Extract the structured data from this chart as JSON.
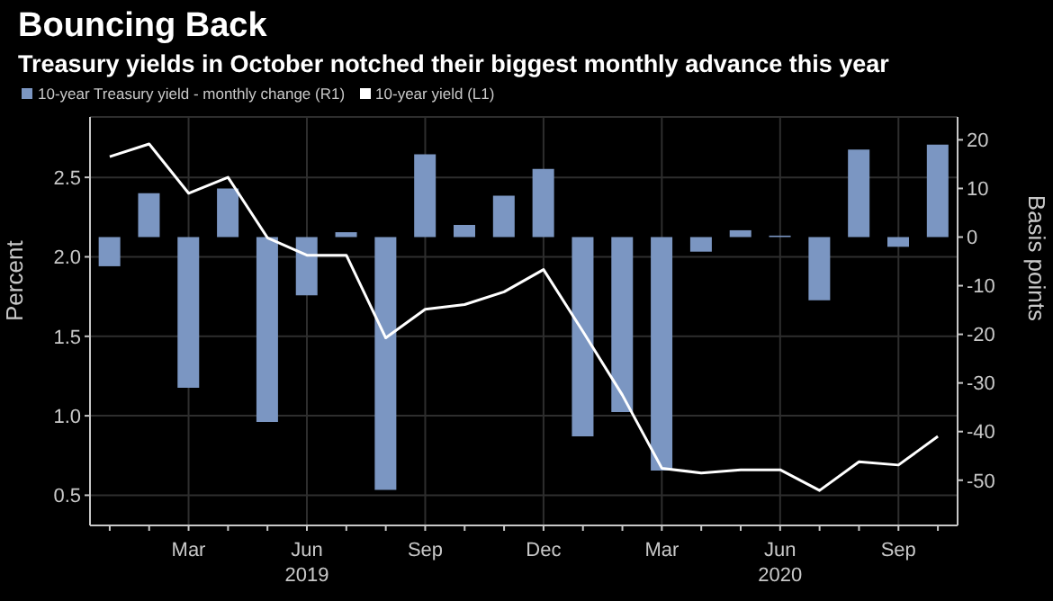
{
  "chart_data": {
    "type": "bar",
    "title": "Bouncing Back",
    "subtitle": "Treasury yields in October notched their biggest monthly advance this year",
    "ylabel": "Percent",
    "y2label": "Basis points",
    "categories": [
      null,
      null,
      "Mar",
      null,
      null,
      "Jun\n2019",
      null,
      null,
      "Sep",
      null,
      null,
      "Dec",
      null,
      null,
      "Mar",
      null,
      null,
      "Jun\n2020",
      null,
      null,
      "Sep",
      null
    ],
    "series": [
      {
        "name": "10-year Treasury yield - monthly change (R1)",
        "axis": "y2",
        "color": "#7b96c2",
        "values": [
          -6,
          9,
          -31,
          10,
          -38,
          -12,
          1,
          -52,
          17,
          2.5,
          8.5,
          14,
          -41,
          -36,
          -48,
          -3,
          1.4,
          0.3,
          -13,
          18,
          -2,
          19
        ]
      },
      {
        "name": "10-year yield (L1)",
        "type": "line",
        "color": "#ffffff",
        "values": [
          2.63,
          2.71,
          2.4,
          2.5,
          2.12,
          2.01,
          2.01,
          1.49,
          1.67,
          1.7,
          1.78,
          1.92,
          1.53,
          1.13,
          0.67,
          0.64,
          0.66,
          0.66,
          0.53,
          0.71,
          0.69,
          0.87
        ]
      }
    ],
    "ylim": [
      0.31,
      2.88
    ],
    "yticks": [
      0.5,
      {
        "value": 1,
        "label": "1.0"
      },
      1.5,
      {
        "value": 2,
        "label": "2.0"
      },
      2.5
    ],
    "y2lim": [
      -59.3,
      24.7
    ],
    "y2ticks": [
      -50,
      -40,
      -30,
      -20,
      -10,
      0,
      10,
      20
    ],
    "grid": true,
    "legend": "top left",
    "marker": "none"
  }
}
